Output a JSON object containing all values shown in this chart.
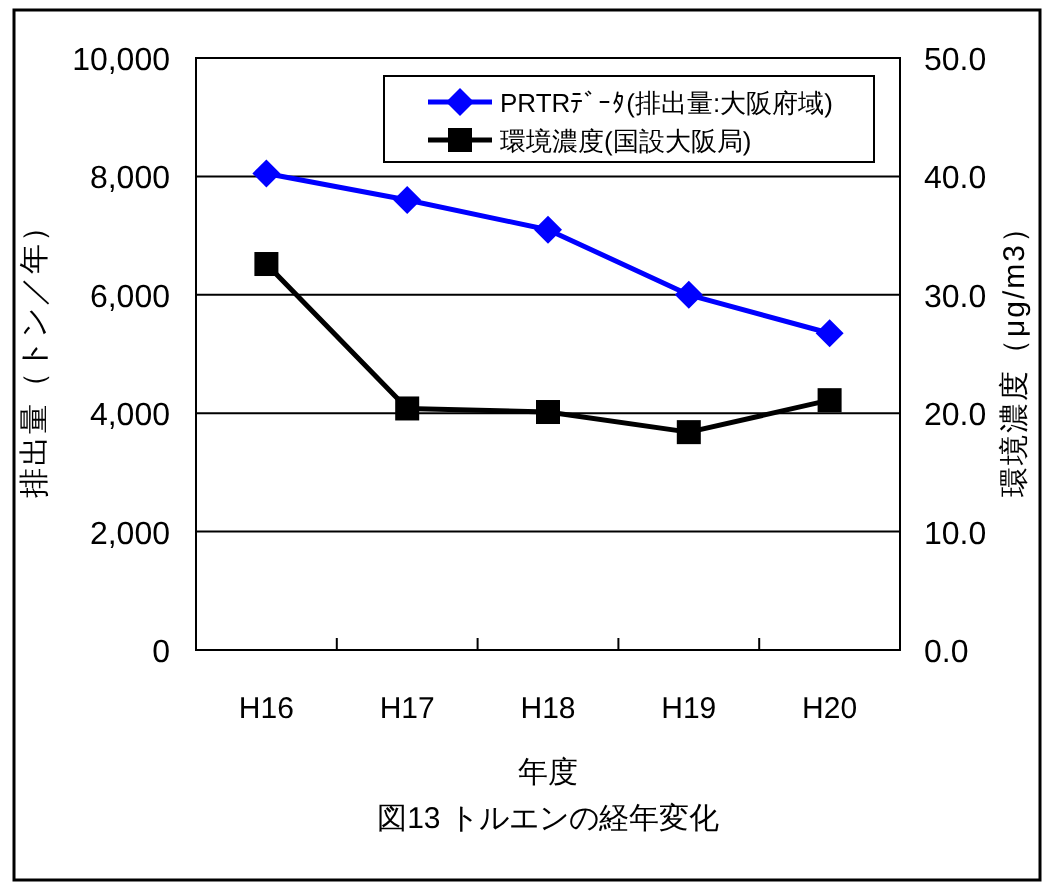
{
  "chart_data": {
    "type": "line",
    "title": "図13 トルエンの経年変化",
    "xlabel": "年度",
    "ylabel": "排出量（トン／年）",
    "y2label": "環境濃度（μg/m3）",
    "categories": [
      "H16",
      "H17",
      "H18",
      "H19",
      "H20"
    ],
    "series": [
      {
        "name": "PRTRﾃﾞｰﾀ(排出量:大阪府域)",
        "color": "#0000ff",
        "marker": "diamond",
        "values": [
          8050,
          7600,
          7100,
          6000,
          5350
        ]
      },
      {
        "name": "環境濃度(国設大阪局)",
        "color": "#000000",
        "marker": "square",
        "axis": "y2",
        "values": [
          32.6,
          20.4,
          20.1,
          18.4,
          21.1
        ]
      }
    ],
    "ylim": [
      0,
      10000
    ],
    "yticks": [
      {
        "value": 0,
        "label": "0"
      },
      {
        "value": 2000,
        "label": "2,000"
      },
      {
        "value": 4000,
        "label": "4,000"
      },
      {
        "value": 6000,
        "label": "6,000"
      },
      {
        "value": 8000,
        "label": "8,000"
      },
      {
        "value": 10000,
        "label": "10,000"
      }
    ],
    "y2lim": [
      0,
      50
    ],
    "y2ticks": [
      {
        "value": 0,
        "label": "0.0"
      },
      {
        "value": 10,
        "label": "10.0"
      },
      {
        "value": 20,
        "label": "20.0"
      },
      {
        "value": 30,
        "label": "30.0"
      },
      {
        "value": 40,
        "label": "40.0"
      },
      {
        "value": 50,
        "label": "50.0"
      }
    ],
    "grid": "y",
    "legend": "top right",
    "line_style": "solid"
  }
}
